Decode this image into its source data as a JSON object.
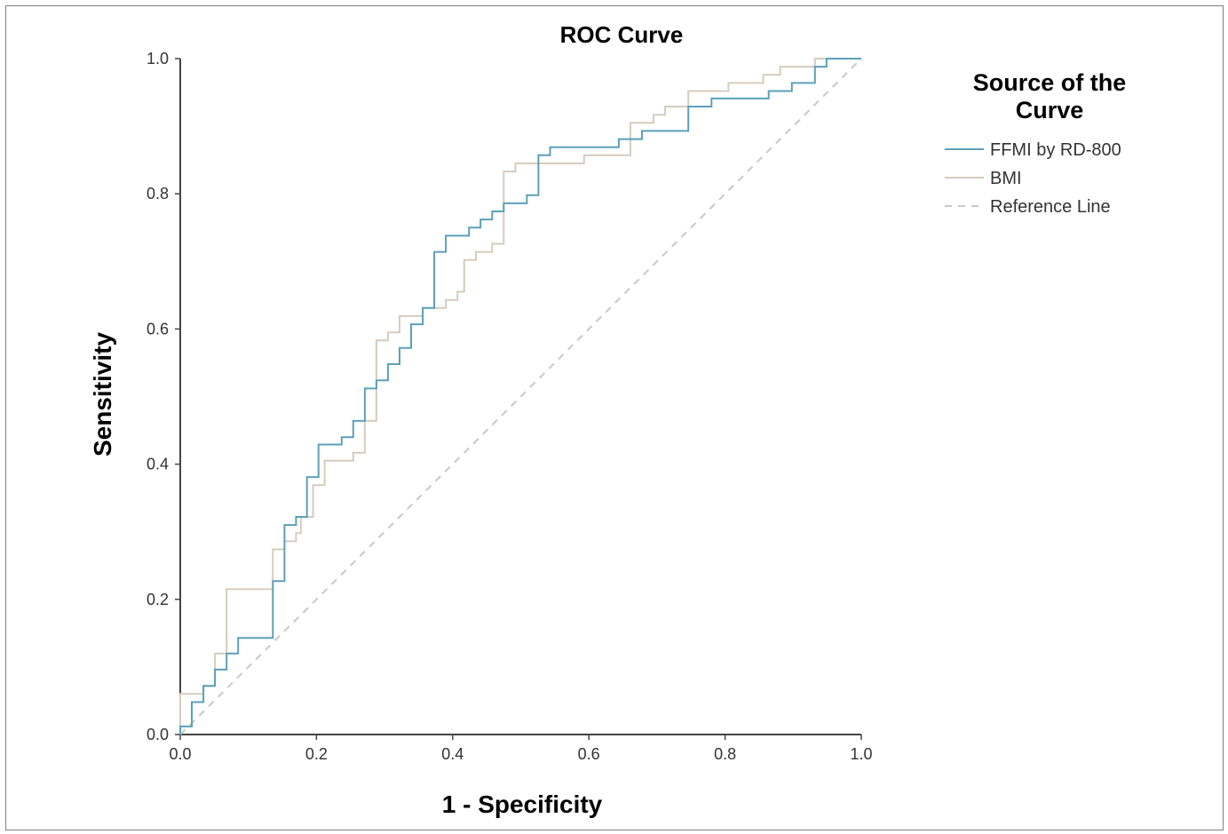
{
  "chart_data": {
    "type": "line",
    "title": "ROC Curve",
    "xlabel": "1 - Specificity",
    "ylabel": "Sensitivity",
    "xlim": [
      0,
      1
    ],
    "ylim": [
      0,
      1
    ],
    "x_ticks": [
      "0.0",
      "0.2",
      "0.4",
      "0.6",
      "0.8",
      "1.0"
    ],
    "y_ticks": [
      "0.0",
      "0.2",
      "0.4",
      "0.6",
      "0.8",
      "1.0"
    ],
    "grid": false,
    "legend": {
      "title": "Source of the Curve",
      "placement": "right"
    },
    "series": [
      {
        "name": "FFMI by RD-800",
        "color": "#5ca0b8",
        "step": true,
        "points": [
          [
            0,
            0
          ],
          [
            0,
            0.012
          ],
          [
            0.017,
            0.012
          ],
          [
            0.017,
            0.048
          ],
          [
            0.034,
            0.048
          ],
          [
            0.034,
            0.072
          ],
          [
            0.051,
            0.072
          ],
          [
            0.051,
            0.096
          ],
          [
            0.068,
            0.096
          ],
          [
            0.068,
            0.12
          ],
          [
            0.085,
            0.12
          ],
          [
            0.085,
            0.143
          ],
          [
            0.136,
            0.143
          ],
          [
            0.136,
            0.227
          ],
          [
            0.153,
            0.227
          ],
          [
            0.153,
            0.31
          ],
          [
            0.17,
            0.31
          ],
          [
            0.17,
            0.322
          ],
          [
            0.186,
            0.322
          ],
          [
            0.186,
            0.381
          ],
          [
            0.203,
            0.381
          ],
          [
            0.203,
            0.429
          ],
          [
            0.237,
            0.429
          ],
          [
            0.237,
            0.44
          ],
          [
            0.254,
            0.44
          ],
          [
            0.254,
            0.464
          ],
          [
            0.271,
            0.464
          ],
          [
            0.271,
            0.512
          ],
          [
            0.288,
            0.512
          ],
          [
            0.288,
            0.524
          ],
          [
            0.305,
            0.524
          ],
          [
            0.305,
            0.548
          ],
          [
            0.322,
            0.548
          ],
          [
            0.322,
            0.572
          ],
          [
            0.339,
            0.572
          ],
          [
            0.339,
            0.607
          ],
          [
            0.356,
            0.607
          ],
          [
            0.356,
            0.631
          ],
          [
            0.373,
            0.631
          ],
          [
            0.373,
            0.714
          ],
          [
            0.39,
            0.714
          ],
          [
            0.39,
            0.738
          ],
          [
            0.424,
            0.738
          ],
          [
            0.424,
            0.75
          ],
          [
            0.441,
            0.75
          ],
          [
            0.441,
            0.762
          ],
          [
            0.458,
            0.762
          ],
          [
            0.458,
            0.774
          ],
          [
            0.475,
            0.774
          ],
          [
            0.475,
            0.786
          ],
          [
            0.509,
            0.786
          ],
          [
            0.509,
            0.798
          ],
          [
            0.526,
            0.798
          ],
          [
            0.526,
            0.857
          ],
          [
            0.543,
            0.857
          ],
          [
            0.543,
            0.869
          ],
          [
            0.644,
            0.869
          ],
          [
            0.644,
            0.881
          ],
          [
            0.661,
            0.881
          ],
          [
            0.661,
            0.881
          ],
          [
            0.678,
            0.881
          ],
          [
            0.678,
            0.893
          ],
          [
            0.746,
            0.893
          ],
          [
            0.746,
            0.929
          ],
          [
            0.78,
            0.929
          ],
          [
            0.78,
            0.941
          ],
          [
            0.864,
            0.941
          ],
          [
            0.864,
            0.952
          ],
          [
            0.898,
            0.952
          ],
          [
            0.898,
            0.964
          ],
          [
            0.932,
            0.964
          ],
          [
            0.932,
            0.988
          ],
          [
            0.949,
            0.988
          ],
          [
            0.949,
            1.0
          ],
          [
            1.0,
            1.0
          ]
        ]
      },
      {
        "name": "BMI",
        "color": "#d6ccbd",
        "step": true,
        "points": [
          [
            0,
            0
          ],
          [
            0,
            0.06
          ],
          [
            0.034,
            0.06
          ],
          [
            0.034,
            0.072
          ],
          [
            0.051,
            0.072
          ],
          [
            0.051,
            0.12
          ],
          [
            0.068,
            0.12
          ],
          [
            0.068,
            0.215
          ],
          [
            0.136,
            0.215
          ],
          [
            0.136,
            0.274
          ],
          [
            0.153,
            0.274
          ],
          [
            0.153,
            0.286
          ],
          [
            0.17,
            0.286
          ],
          [
            0.17,
            0.298
          ],
          [
            0.177,
            0.298
          ],
          [
            0.177,
            0.322
          ],
          [
            0.195,
            0.322
          ],
          [
            0.195,
            0.369
          ],
          [
            0.212,
            0.369
          ],
          [
            0.212,
            0.405
          ],
          [
            0.254,
            0.405
          ],
          [
            0.254,
            0.417
          ],
          [
            0.271,
            0.417
          ],
          [
            0.271,
            0.464
          ],
          [
            0.288,
            0.464
          ],
          [
            0.288,
            0.583
          ],
          [
            0.305,
            0.583
          ],
          [
            0.305,
            0.595
          ],
          [
            0.322,
            0.595
          ],
          [
            0.322,
            0.619
          ],
          [
            0.356,
            0.619
          ],
          [
            0.356,
            0.631
          ],
          [
            0.39,
            0.631
          ],
          [
            0.39,
            0.643
          ],
          [
            0.407,
            0.643
          ],
          [
            0.407,
            0.655
          ],
          [
            0.417,
            0.655
          ],
          [
            0.417,
            0.702
          ],
          [
            0.434,
            0.702
          ],
          [
            0.434,
            0.714
          ],
          [
            0.458,
            0.714
          ],
          [
            0.458,
            0.726
          ],
          [
            0.475,
            0.726
          ],
          [
            0.475,
            0.833
          ],
          [
            0.492,
            0.833
          ],
          [
            0.492,
            0.845
          ],
          [
            0.593,
            0.845
          ],
          [
            0.593,
            0.857
          ],
          [
            0.661,
            0.857
          ],
          [
            0.661,
            0.905
          ],
          [
            0.695,
            0.905
          ],
          [
            0.695,
            0.917
          ],
          [
            0.712,
            0.917
          ],
          [
            0.712,
            0.929
          ],
          [
            0.746,
            0.929
          ],
          [
            0.746,
            0.952
          ],
          [
            0.805,
            0.952
          ],
          [
            0.805,
            0.964
          ],
          [
            0.856,
            0.964
          ],
          [
            0.856,
            0.976
          ],
          [
            0.881,
            0.976
          ],
          [
            0.881,
            0.988
          ],
          [
            0.932,
            0.988
          ],
          [
            0.932,
            1.0
          ],
          [
            1.0,
            1.0
          ]
        ]
      },
      {
        "name": "Reference Line",
        "color": "#c8c8c8",
        "dashed": true,
        "points": [
          [
            0,
            0
          ],
          [
            1,
            1
          ]
        ]
      }
    ]
  }
}
